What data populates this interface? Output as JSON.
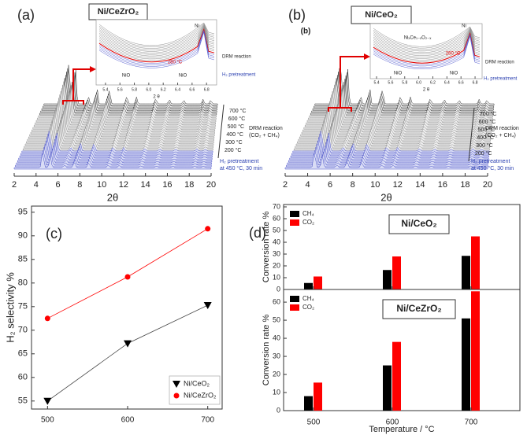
{
  "chart_data": [
    {
      "type": "waterfall",
      "panel_label": "(a)",
      "title": "Ni/CeZrO₂",
      "xlabel": "2θ",
      "xlim": [
        2,
        20
      ],
      "xticks": [
        2,
        4,
        6,
        8,
        10,
        12,
        14,
        16,
        18,
        20
      ],
      "temperature_labels": [
        "700 °C",
        "600 °C",
        "500 °C",
        "400 °C",
        "300 °C",
        "200 °C"
      ],
      "reaction_label": "DRM reaction",
      "reaction_gas": "(CO₂ + CH₄)",
      "pretreatment_label": "H₂ pretreatment",
      "pretreatment_condition": "at 450 °C, 30 min",
      "inset": {
        "xlabel": "2 θ",
        "xlim": [
          5.27,
          6.94
        ],
        "xticks": [
          5.4,
          5.6,
          5.8,
          {
            "value": 6,
            "label": "6.0"
          },
          6.2,
          6.4,
          6.6,
          6.8
        ],
        "annotations": [
          "Ni",
          "NiO",
          "NiO",
          "280 °C"
        ],
        "reaction_label": "DRM reaction",
        "pretreatment_label": "H₂ pretreatment"
      }
    },
    {
      "type": "waterfall",
      "panel_label": "(b)",
      "inner_label": "(b)",
      "title": "Ni/CeO₂",
      "xlabel": "2θ",
      "xlim": [
        2,
        20
      ],
      "xticks": [
        2,
        4,
        6,
        8,
        10,
        12,
        14,
        16,
        18,
        20
      ],
      "temperature_labels": [
        "700 °C",
        "600 °C",
        "500 °C",
        "400 °C",
        "300 °C",
        "200 °C"
      ],
      "reaction_label": "DRM reaction",
      "reaction_gas": "(CO₂ + CH₄)",
      "pretreatment_label": "H₂ pretreatment",
      "pretreatment_condition": "at 450 °C, 30 min",
      "inset": {
        "xlabel": "2 θ",
        "xlim": [
          5.31,
          6.9
        ],
        "xticks": [
          5.4,
          5.6,
          5.8,
          {
            "value": 6,
            "label": "6.0"
          },
          6.2,
          6.4,
          6.6,
          6.8
        ],
        "annotations": [
          "Ni",
          "NiₓCe₁₋ₓO₂₋ₓ",
          "NiO",
          "NiO",
          "260 °C"
        ],
        "reaction_label": "DRM reaction",
        "pretreatment_label": "H₂ pretreatment"
      }
    },
    {
      "type": "line",
      "panel_label": "(c)",
      "ylabel": "H₂ selectivity %",
      "x": [
        500,
        600,
        700
      ],
      "xlim": [
        480,
        718
      ],
      "xticks": [
        500,
        600,
        700
      ],
      "ylim": [
        53.3,
        96.3
      ],
      "yticks": [
        55,
        60,
        65,
        70,
        75,
        80,
        85,
        90,
        95
      ],
      "legend": "lower right",
      "series": [
        {
          "name": "Ni/CeO₂",
          "color": "#000000",
          "marker": "triangle-down",
          "values": [
            55,
            67.2,
            75.3
          ]
        },
        {
          "name": "Ni/CeZrO₂",
          "color": "#ff0000",
          "marker": "circle",
          "values": [
            72.5,
            81.3,
            91.5
          ]
        }
      ]
    },
    {
      "type": "bar",
      "panel_label": "(d)",
      "title": "Ni/CeO₂",
      "ylabel": "Conversion rate  %",
      "ylim": [
        0,
        72
      ],
      "yticks": [
        0,
        10,
        20,
        30,
        40,
        50,
        60,
        70
      ],
      "series": [
        {
          "name": "CH₄",
          "color": "#000000",
          "values": [
            5.5,
            16.5,
            28.5
          ]
        },
        {
          "name": "CO₂",
          "color": "#ff0000",
          "values": [
            11,
            28,
            45
          ]
        }
      ]
    },
    {
      "type": "bar",
      "title": "Ni/CeZrO₂",
      "ylabel": "Conversion rate  %",
      "xlabel": "Temperature / °C",
      "categories": [
        "500",
        "600",
        "700"
      ],
      "ylim": [
        0,
        67
      ],
      "yticks": [
        0,
        10,
        20,
        30,
        40,
        50,
        60
      ],
      "series": [
        {
          "name": "CH₄",
          "color": "#000000",
          "values": [
            8,
            25,
            51
          ]
        },
        {
          "name": "CO₂",
          "color": "#ff0000",
          "values": [
            15.5,
            38,
            66
          ]
        }
      ]
    }
  ]
}
